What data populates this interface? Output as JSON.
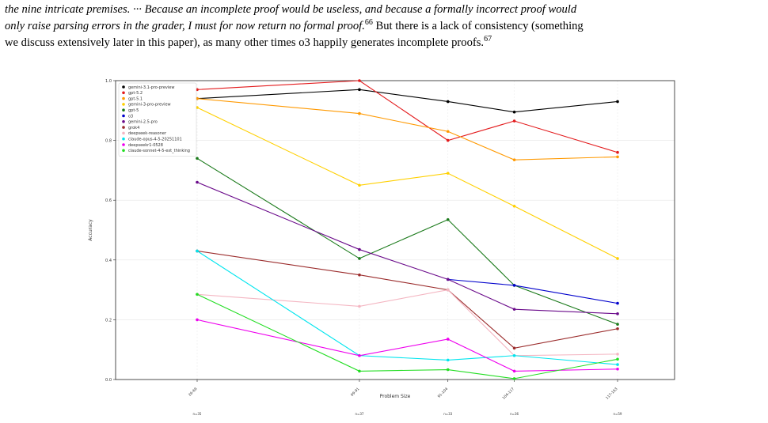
{
  "text": {
    "line1": "the nine intricate premises. ··· Because an incomplete proof would be useless, and because a formally incorrect proof would",
    "line2a": "only raise parsing errors in the grader, I must for now return no formal proof.",
    "sup1": "66",
    "line2b": " But there is a lack of consistency (something",
    "line3": "we discuss extensively later in this paper), as many other times o3 happily generates incomplete proofs.",
    "sup2": "67"
  },
  "chart_data": {
    "type": "line",
    "xlabel": "Problem Size",
    "ylabel": "Accuracy",
    "categories": [
      "26-69",
      "69-91",
      "91-104",
      "104-117",
      "117-163"
    ],
    "x_positions": [
      0,
      2.2,
      3.4,
      4.3,
      5.7
    ],
    "ylim": [
      0,
      1.0
    ],
    "yticks": [
      "0.0",
      "0.2",
      "0.4",
      "0.6",
      "0.8",
      "1.0"
    ],
    "counts": [
      "n=35",
      "n=37",
      "n=33",
      "n=36",
      "n=59"
    ],
    "legend_position": "top-left",
    "series": [
      {
        "name": "gemini-3.1-pro-preview",
        "color": "#000000",
        "values": [
          0.94,
          0.97,
          0.93,
          0.895,
          0.93
        ]
      },
      {
        "name": "gpt-5.2",
        "color": "#e31a1c",
        "values": [
          0.97,
          1.0,
          0.8,
          0.865,
          0.76
        ]
      },
      {
        "name": "gpt-5.1",
        "color": "#ff9900",
        "values": [
          0.94,
          0.89,
          0.83,
          0.735,
          0.745
        ]
      },
      {
        "name": "gemini-3-pro-preview",
        "color": "#ffd000",
        "values": [
          0.91,
          0.65,
          0.69,
          0.58,
          0.405
        ]
      },
      {
        "name": "gpt-5",
        "color": "#1b7a1b",
        "values": [
          0.74,
          0.405,
          0.535,
          0.315,
          0.185
        ]
      },
      {
        "name": "o3",
        "color": "#0000cc",
        "values": [
          null,
          null,
          0.335,
          0.315,
          0.255
        ]
      },
      {
        "name": "gemini-2.5-pro",
        "color": "#6a0a8a",
        "values": [
          0.66,
          0.435,
          0.335,
          0.235,
          0.22
        ]
      },
      {
        "name": "grok4",
        "color": "#9b2c2c",
        "values": [
          0.43,
          0.35,
          0.3,
          0.105,
          0.17
        ]
      },
      {
        "name": "deepseek-reasoner",
        "color": "#f4b6c2",
        "values": [
          0.285,
          0.245,
          0.3,
          0.08,
          0.085
        ]
      },
      {
        "name": "claude-opus-4-5-20251101",
        "color": "#00e5ee",
        "values": [
          0.43,
          0.08,
          0.065,
          0.08,
          0.05
        ]
      },
      {
        "name": "deepseekr1-0528",
        "color": "#ee00ee",
        "values": [
          0.2,
          0.08,
          0.135,
          0.028,
          0.035
        ]
      },
      {
        "name": "claude-sonnet-4-5-ext_thinking",
        "color": "#22dd22",
        "values": [
          0.285,
          0.028,
          0.033,
          0.003,
          0.068
        ]
      }
    ]
  }
}
